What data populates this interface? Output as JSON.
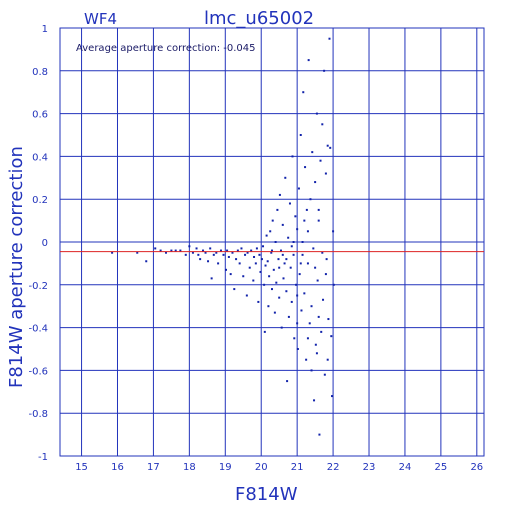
{
  "chart_data": {
    "type": "scatter",
    "title": "lmc_u65002",
    "subtitle": "WF4",
    "annotation": "Average aperture correction: -0.045",
    "xlabel": "F814W",
    "ylabel": "F814W aperture correction",
    "xlim": [
      14.4,
      26.2
    ],
    "ylim": [
      -1,
      1
    ],
    "x_ticks": [
      "15",
      "16",
      "17",
      "18",
      "19",
      "20",
      "21",
      "22",
      "23",
      "24",
      "25",
      "26"
    ],
    "y_ticks": [
      "1",
      "0.8",
      "0.6",
      "0.4",
      "0.2",
      "0",
      "-0.2",
      "-0.4",
      "-0.6",
      "-0.8",
      "-1"
    ],
    "grid": true,
    "reference_line": {
      "y": -0.045,
      "color": "#dd2222"
    },
    "colors": {
      "axis": "#2233bb",
      "points": "#1122aa",
      "reference": "#dd2222"
    },
    "points": [
      [
        15.85,
        -0.05
      ],
      [
        16.55,
        -0.05
      ],
      [
        16.8,
        -0.09
      ],
      [
        17.05,
        -0.03
      ],
      [
        17.2,
        -0.04
      ],
      [
        17.35,
        -0.05
      ],
      [
        17.5,
        -0.04
      ],
      [
        17.62,
        -0.04
      ],
      [
        17.75,
        -0.04
      ],
      [
        17.9,
        -0.06
      ],
      [
        18.0,
        -0.02
      ],
      [
        18.1,
        -0.05
      ],
      [
        18.2,
        -0.03
      ],
      [
        18.25,
        -0.06
      ],
      [
        18.3,
        -0.08
      ],
      [
        18.38,
        -0.04
      ],
      [
        18.45,
        -0.05
      ],
      [
        18.52,
        -0.09
      ],
      [
        18.58,
        -0.03
      ],
      [
        18.62,
        -0.17
      ],
      [
        18.68,
        -0.06
      ],
      [
        18.75,
        -0.05
      ],
      [
        18.8,
        -0.1
      ],
      [
        18.88,
        -0.04
      ],
      [
        18.95,
        -0.06
      ],
      [
        19.02,
        -0.13
      ],
      [
        19.05,
        -0.04
      ],
      [
        19.1,
        -0.07
      ],
      [
        19.15,
        -0.15
      ],
      [
        19.2,
        -0.05
      ],
      [
        19.25,
        -0.22
      ],
      [
        19.3,
        -0.08
      ],
      [
        19.35,
        -0.04
      ],
      [
        19.4,
        -0.1
      ],
      [
        19.45,
        -0.03
      ],
      [
        19.5,
        -0.16
      ],
      [
        19.55,
        -0.06
      ],
      [
        19.6,
        -0.25
      ],
      [
        19.62,
        -0.05
      ],
      [
        19.68,
        -0.12
      ],
      [
        19.72,
        -0.04
      ],
      [
        19.78,
        -0.18
      ],
      [
        19.8,
        -0.07
      ],
      [
        19.85,
        -0.1
      ],
      [
        19.88,
        -0.03
      ],
      [
        19.92,
        -0.28
      ],
      [
        19.95,
        -0.06
      ],
      [
        19.98,
        -0.14
      ],
      [
        20.02,
        -0.08
      ],
      [
        20.05,
        -0.02
      ],
      [
        20.08,
        -0.2
      ],
      [
        20.1,
        -0.42
      ],
      [
        20.12,
        -0.11
      ],
      [
        20.15,
        0.03
      ],
      [
        20.18,
        -0.09
      ],
      [
        20.2,
        -0.3
      ],
      [
        20.22,
        -0.16
      ],
      [
        20.25,
        0.05
      ],
      [
        20.28,
        -0.05
      ],
      [
        20.3,
        -0.22
      ],
      [
        20.32,
        0.1
      ],
      [
        20.35,
        -0.13
      ],
      [
        20.38,
        -0.33
      ],
      [
        20.4,
        0.0
      ],
      [
        20.42,
        -0.19
      ],
      [
        20.45,
        0.15
      ],
      [
        20.48,
        -0.08
      ],
      [
        20.5,
        -0.26
      ],
      [
        20.52,
        0.22
      ],
      [
        20.55,
        -0.04
      ],
      [
        20.57,
        -0.4
      ],
      [
        20.6,
        0.08
      ],
      [
        20.62,
        -0.17
      ],
      [
        20.65,
        -0.1
      ],
      [
        20.67,
        0.3
      ],
      [
        20.7,
        -0.23
      ],
      [
        20.72,
        -0.65
      ],
      [
        20.75,
        0.02
      ],
      [
        20.77,
        -0.35
      ],
      [
        20.8,
        0.18
      ],
      [
        20.82,
        -0.12
      ],
      [
        20.85,
        -0.28
      ],
      [
        20.87,
        0.4
      ],
      [
        20.9,
        -0.06
      ],
      [
        20.92,
        -0.45
      ],
      [
        20.95,
        0.12
      ],
      [
        20.97,
        -0.2
      ],
      [
        21.0,
        0.06
      ],
      [
        21.02,
        -0.5
      ],
      [
        21.05,
        0.25
      ],
      [
        21.07,
        -0.15
      ],
      [
        21.1,
        0.5
      ],
      [
        21.12,
        -0.32
      ],
      [
        21.15,
        0.0
      ],
      [
        21.17,
        0.7
      ],
      [
        21.2,
        -0.24
      ],
      [
        21.22,
        0.35
      ],
      [
        21.25,
        -0.55
      ],
      [
        21.27,
        0.15
      ],
      [
        21.3,
        -0.1
      ],
      [
        21.32,
        0.85
      ],
      [
        21.35,
        -0.38
      ],
      [
        21.37,
        0.2
      ],
      [
        21.4,
        -0.6
      ],
      [
        21.42,
        0.42
      ],
      [
        21.45,
        -0.03
      ],
      [
        21.47,
        -0.74
      ],
      [
        21.5,
        0.28
      ],
      [
        21.52,
        -0.48
      ],
      [
        21.55,
        0.6
      ],
      [
        21.57,
        -0.18
      ],
      [
        21.6,
        0.1
      ],
      [
        21.62,
        -0.9
      ],
      [
        21.65,
        0.38
      ],
      [
        21.67,
        -0.42
      ],
      [
        21.7,
        0.55
      ],
      [
        21.72,
        -0.27
      ],
      [
        21.75,
        0.8
      ],
      [
        21.77,
        -0.62
      ],
      [
        21.8,
        0.32
      ],
      [
        21.82,
        -0.08
      ],
      [
        21.85,
        0.45
      ],
      [
        21.87,
        -0.36
      ],
      [
        21.9,
        0.95
      ],
      [
        21.92,
        0.44
      ],
      [
        21.95,
        -0.44
      ],
      [
        21.97,
        -0.72
      ],
      [
        22.0,
        0.05
      ],
      [
        22.02,
        -0.2
      ],
      [
        21.1,
        -0.1
      ],
      [
        21.3,
        0.05
      ],
      [
        21.5,
        -0.12
      ],
      [
        21.7,
        -0.05
      ],
      [
        20.9,
        0.0
      ],
      [
        20.6,
        -0.06
      ],
      [
        20.3,
        -0.04
      ],
      [
        21.0,
        -0.25
      ],
      [
        21.4,
        -0.3
      ],
      [
        21.6,
        -0.35
      ],
      [
        21.8,
        -0.15
      ],
      [
        20.5,
        -0.12
      ],
      [
        20.7,
        -0.08
      ],
      [
        21.2,
        0.1
      ],
      [
        21.6,
        0.15
      ],
      [
        21.0,
        -0.38
      ],
      [
        21.3,
        -0.45
      ],
      [
        21.55,
        -0.52
      ],
      [
        21.85,
        -0.55
      ],
      [
        20.85,
        -0.02
      ],
      [
        21.15,
        -0.06
      ]
    ]
  }
}
